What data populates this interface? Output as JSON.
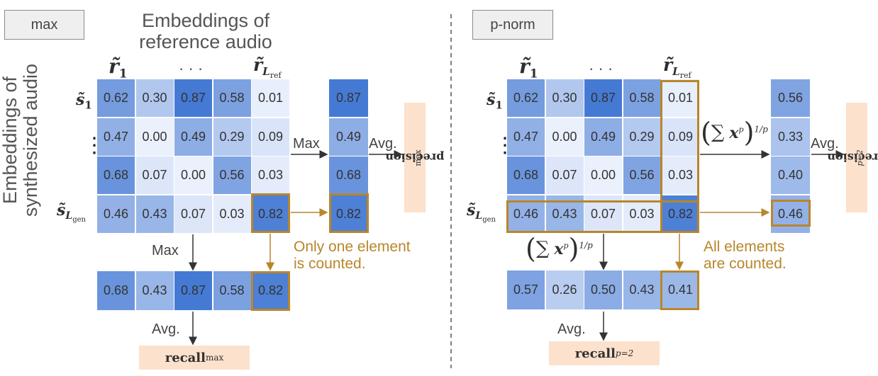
{
  "left": {
    "label": "max",
    "title_top": "Embeddings of\nreference audio",
    "title_side": "Embeddings of\nsynthesized audio",
    "col_first": "r̃",
    "col_first_sub": "1",
    "col_dots": "· · ·",
    "col_last": "r̃",
    "col_last_sub": "L",
    "col_last_subsub": "ref",
    "row_first": "s̃",
    "row_first_sub": "1",
    "row_dots": "⋮",
    "row_last": "s̃",
    "row_last_sub": "L",
    "row_last_subsub": "gen",
    "matrix": [
      [
        "0.62",
        "0.30",
        "0.87",
        "0.58",
        "0.01"
      ],
      [
        "0.47",
        "0.00",
        "0.49",
        "0.29",
        "0.09"
      ],
      [
        "0.68",
        "0.07",
        "0.00",
        "0.56",
        "0.03"
      ],
      [
        "0.46",
        "0.43",
        "0.07",
        "0.03",
        "0.82"
      ]
    ],
    "row_result": [
      "0.87",
      "0.49",
      "0.68",
      "0.82"
    ],
    "col_result": [
      "0.68",
      "0.43",
      "0.87",
      "0.58",
      "0.82"
    ],
    "op_row": "Max",
    "op_col": "Max",
    "avg_row": "Avg.",
    "avg_col": "Avg.",
    "note": "Only one element\nis counted.",
    "precision": "precision",
    "precision_sub": "max",
    "recall": "recall",
    "recall_sub": "max"
  },
  "right": {
    "label": "p-norm",
    "col_first": "r̃",
    "col_first_sub": "1",
    "col_dots": "· · ·",
    "col_last": "r̃",
    "col_last_sub": "L",
    "col_last_subsub": "ref",
    "row_first": "s̃",
    "row_first_sub": "1",
    "row_dots": "⋮",
    "row_last": "s̃",
    "row_last_sub": "L",
    "row_last_subsub": "gen",
    "matrix": [
      [
        "0.62",
        "0.30",
        "0.87",
        "0.58",
        "0.01"
      ],
      [
        "0.47",
        "0.00",
        "0.49",
        "0.29",
        "0.09"
      ],
      [
        "0.68",
        "0.07",
        "0.00",
        "0.56",
        "0.03"
      ],
      [
        "0.46",
        "0.43",
        "0.07",
        "0.03",
        "0.82"
      ]
    ],
    "row_result": [
      "0.56",
      "0.33",
      "0.40",
      "0.46"
    ],
    "col_result": [
      "0.57",
      "0.26",
      "0.50",
      "0.43",
      "0.41"
    ],
    "formula_open": "(",
    "formula_sum": "∑",
    "formula_x": "x",
    "formula_p": "p",
    "formula_close": ")",
    "formula_exp": "1/p",
    "avg_row": "Avg.",
    "avg_col": "Avg.",
    "note": "All elements\nare counted.",
    "precision": "precision",
    "precision_sub": "p=2",
    "recall": "recall",
    "recall_sub": "p=2"
  },
  "colors": {
    "gold": "#b8862b",
    "pill": "#fce1cc",
    "divider": "#555555"
  }
}
